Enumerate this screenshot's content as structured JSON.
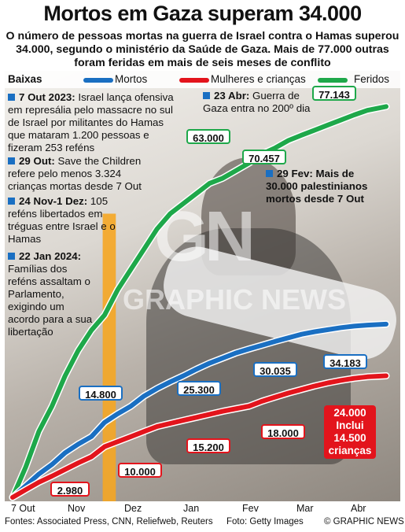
{
  "title": "Mortos em Gaza superam 34.000",
  "subtitle": "O número de pessoas mortas na guerra de Israel contra o Hamas superou 34.000, segundo o ministério da Saúde de Gaza. Mais de 77.000 outras foram feridas em mais de seis meses de conflito",
  "legend": {
    "heading": "Baixas",
    "items": [
      {
        "label": "Mortos",
        "color": "#1a6fc2"
      },
      {
        "label": "Mulheres e crianças",
        "color": "#e3141c"
      },
      {
        "label": "Feridos",
        "color": "#1ea84a"
      }
    ]
  },
  "annotations": [
    {
      "date": "7 Out 2023:",
      "text": "Israel lança ofensiva em represália pelo massacre no sul de Israel por militantes do Hamas que mataram 1.200 pessoas e fizeram 253 reféns"
    },
    {
      "date": "29 Out:",
      "text": "Save the Children refere pelo menos 3.324 crianças mortas desde 7 Out"
    },
    {
      "date": "24 Nov-1 Dez:",
      "text": "105 reféns libertados em tréguas entre Israel e o Hamas"
    },
    {
      "date": "22 Jan 2024:",
      "text": "Famílias dos reféns assaltam o Parlamento, exigindo um acordo para a sua libertação"
    },
    {
      "date": "23 Abr:",
      "text": "Guerra de Gaza entra no 200º dia"
    },
    {
      "date": "29 Fev:",
      "text": "Mais de 30.000 palestinianos mortos desde 7 Out"
    }
  ],
  "chart_data": {
    "type": "line",
    "title": "Baixas",
    "x_ticks": [
      "7 Out",
      "Nov",
      "Dez",
      "Jan",
      "Fev",
      "Mar",
      "Abr"
    ],
    "x_unit": "days since 7 Out 2023",
    "ylim": [
      0,
      80000
    ],
    "truce_period": {
      "label": "24 Nov-1 Dez",
      "start": 48,
      "end": 55
    },
    "series": [
      {
        "name": "Feridos",
        "color": "#1ea84a",
        "x": [
          0,
          7,
          14,
          21,
          28,
          35,
          42,
          49,
          56,
          63,
          70,
          77,
          84,
          91,
          98,
          105,
          112,
          119,
          126,
          133,
          140,
          147,
          154,
          161,
          168,
          175,
          182,
          189,
          199
        ],
        "values": [
          0,
          6000,
          13000,
          18000,
          24000,
          29000,
          33000,
          36000,
          41000,
          45000,
          49000,
          53000,
          56000,
          58000,
          60000,
          62000,
          63000,
          64500,
          66000,
          67800,
          69000,
          70457,
          71500,
          72500,
          73500,
          74500,
          75500,
          76400,
          77143
        ]
      },
      {
        "name": "Mortos",
        "color": "#1a6fc2",
        "x": [
          0,
          7,
          14,
          21,
          28,
          35,
          42,
          49,
          56,
          63,
          70,
          77,
          84,
          91,
          98,
          105,
          112,
          119,
          126,
          133,
          140,
          147,
          154,
          161,
          168,
          175,
          182,
          189,
          199
        ],
        "values": [
          0,
          2300,
          4600,
          6500,
          8800,
          10500,
          12000,
          14800,
          16500,
          18000,
          20000,
          21500,
          22800,
          24000,
          25300,
          26500,
          27500,
          28500,
          29300,
          30035,
          30800,
          31500,
          32200,
          32700,
          33100,
          33500,
          33800,
          34000,
          34183
        ]
      },
      {
        "name": "Mulheres e crianças",
        "color": "#e3141c",
        "x": [
          0,
          7,
          14,
          21,
          28,
          35,
          42,
          49,
          56,
          63,
          70,
          77,
          84,
          91,
          98,
          105,
          112,
          119,
          126,
          133,
          140,
          147,
          154,
          161,
          168,
          175,
          182,
          189,
          199
        ],
        "values": [
          0,
          1500,
          2980,
          4200,
          5500,
          6800,
          8000,
          10000,
          11000,
          12000,
          13000,
          14000,
          14600,
          15200,
          15800,
          16400,
          17000,
          17500,
          18000,
          19000,
          19800,
          20600,
          21300,
          22000,
          22600,
          23100,
          23500,
          23800,
          24000
        ]
      }
    ],
    "data_labels": [
      {
        "text": "77.143",
        "series": "Feridos",
        "x": 199
      },
      {
        "text": "63.000",
        "series": "Feridos",
        "x": 112
      },
      {
        "text": "70.457",
        "series": "Feridos",
        "x": 147
      },
      {
        "text": "14.800",
        "series": "Mortos",
        "x": 49
      },
      {
        "text": "25.300",
        "series": "Mortos",
        "x": 98
      },
      {
        "text": "30.035",
        "series": "Mortos",
        "x": 133
      },
      {
        "text": "34.183",
        "series": "Mortos",
        "x": 199
      },
      {
        "text": "2.980",
        "series": "Mulheres e crianças",
        "x": 14
      },
      {
        "text": "10.000",
        "series": "Mulheres e crianças",
        "x": 49
      },
      {
        "text": "15.200",
        "series": "Mulheres e crianças",
        "x": 91
      },
      {
        "text": "18.000",
        "series": "Mulheres e crianças",
        "x": 126
      },
      {
        "text": "24.000 Inclui 14.500 crianças",
        "series": "Mulheres e crianças",
        "x": 199
      }
    ]
  },
  "watermark": {
    "logo": "GN",
    "text": "GRAPHIC NEWS"
  },
  "footer": {
    "sources": "Fontes: Associated Press, CNN, Reliefweb, Reuters",
    "photo": "Foto: Getty Images",
    "credit": "© GRAPHIC NEWS"
  }
}
